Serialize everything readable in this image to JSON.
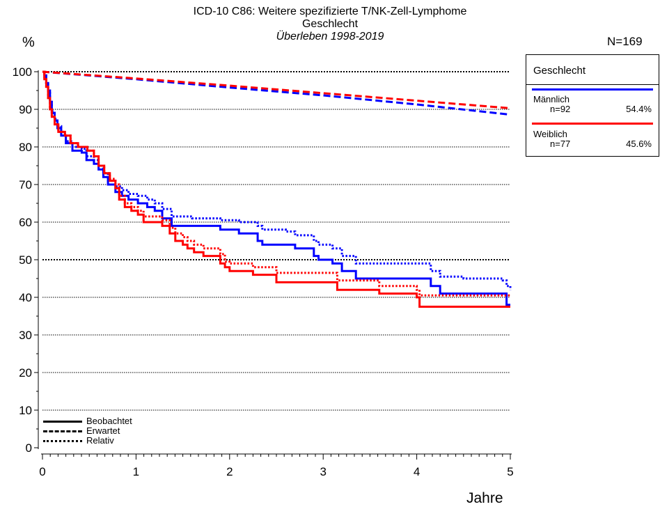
{
  "chart_data": {
    "type": "line",
    "title": "ICD-10 C86: Weitere spezifizierte T/NK-Zell-Lymphome",
    "subtitle": "Geschlecht",
    "subtitle2": "Überleben 1998-2019",
    "ylabel": "%",
    "xlabel": "Jahre",
    "n_label": "N=169",
    "xlim": [
      0,
      5
    ],
    "ylim": [
      0,
      100
    ],
    "x_ticks": [
      "0",
      "1",
      "2",
      "3",
      "4",
      "5"
    ],
    "y_ticks": [
      "0",
      "10",
      "20",
      "30",
      "40",
      "50",
      "60",
      "70",
      "80",
      "90",
      "100"
    ],
    "grid": true,
    "legend": {
      "title": "Geschlecht",
      "placement": "right",
      "entries": [
        {
          "name": "Männlich",
          "n": "n=92",
          "pct": "54.4%",
          "color": "#0000ff"
        },
        {
          "name": "Weiblich",
          "n": "n=77",
          "pct": "45.6%",
          "color": "#ff0000"
        }
      ]
    },
    "line_styles": [
      {
        "name": "Beobachtet",
        "style": "solid"
      },
      {
        "name": "Erwartet",
        "style": "dashed"
      },
      {
        "name": "Relativ",
        "style": "dotted"
      }
    ],
    "series": [
      {
        "group": "Männlich",
        "kind": "Beobachtet",
        "color": "#0000ff",
        "style": "solid",
        "step": true,
        "points": [
          [
            0,
            100
          ],
          [
            0.02,
            99
          ],
          [
            0.04,
            97
          ],
          [
            0.06,
            95
          ],
          [
            0.08,
            92
          ],
          [
            0.1,
            89
          ],
          [
            0.13,
            87
          ],
          [
            0.16,
            85
          ],
          [
            0.2,
            83
          ],
          [
            0.25,
            81
          ],
          [
            0.32,
            79
          ],
          [
            0.42,
            78.5
          ],
          [
            0.47,
            76.5
          ],
          [
            0.55,
            75.5
          ],
          [
            0.6,
            74
          ],
          [
            0.65,
            72
          ],
          [
            0.7,
            70
          ],
          [
            0.78,
            68
          ],
          [
            0.85,
            67
          ],
          [
            0.92,
            66
          ],
          [
            1.02,
            65
          ],
          [
            1.12,
            64
          ],
          [
            1.2,
            63
          ],
          [
            1.28,
            61
          ],
          [
            1.38,
            59
          ],
          [
            1.6,
            59
          ],
          [
            1.9,
            58
          ],
          [
            2.1,
            57
          ],
          [
            2.3,
            55
          ],
          [
            2.35,
            54
          ],
          [
            2.6,
            54
          ],
          [
            2.7,
            53
          ],
          [
            2.9,
            51
          ],
          [
            2.95,
            50
          ],
          [
            3.1,
            49
          ],
          [
            3.2,
            47
          ],
          [
            3.35,
            45
          ],
          [
            3.6,
            45
          ],
          [
            4.05,
            45
          ],
          [
            4.15,
            43
          ],
          [
            4.25,
            41
          ],
          [
            4.5,
            41
          ],
          [
            4.92,
            41
          ],
          [
            4.96,
            38
          ],
          [
            5,
            38
          ]
        ]
      },
      {
        "group": "Männlich",
        "kind": "Erwartet",
        "color": "#0000ff",
        "style": "dashed",
        "step": false,
        "points": [
          [
            0,
            100
          ],
          [
            1,
            98
          ],
          [
            2,
            95.8
          ],
          [
            3,
            93.7
          ],
          [
            4,
            91.3
          ],
          [
            5,
            88.6
          ]
        ]
      },
      {
        "group": "Männlich",
        "kind": "Relativ",
        "color": "#0000ff",
        "style": "dotted",
        "step": true,
        "points": [
          [
            0,
            100
          ],
          [
            0.02,
            99
          ],
          [
            0.04,
            97
          ],
          [
            0.06,
            95
          ],
          [
            0.08,
            92
          ],
          [
            0.1,
            89.5
          ],
          [
            0.13,
            87.5
          ],
          [
            0.16,
            85.5
          ],
          [
            0.2,
            83.5
          ],
          [
            0.25,
            81.5
          ],
          [
            0.32,
            80
          ],
          [
            0.42,
            79.5
          ],
          [
            0.47,
            77.5
          ],
          [
            0.55,
            76.5
          ],
          [
            0.6,
            75
          ],
          [
            0.65,
            73
          ],
          [
            0.7,
            71
          ],
          [
            0.78,
            69.5
          ],
          [
            0.85,
            68.5
          ],
          [
            0.92,
            67.5
          ],
          [
            1.02,
            67
          ],
          [
            1.12,
            66
          ],
          [
            1.2,
            65
          ],
          [
            1.28,
            63.5
          ],
          [
            1.38,
            61.5
          ],
          [
            1.6,
            61
          ],
          [
            1.9,
            60.5
          ],
          [
            2.1,
            60
          ],
          [
            2.3,
            59
          ],
          [
            2.35,
            58
          ],
          [
            2.6,
            57.5
          ],
          [
            2.7,
            56.5
          ],
          [
            2.9,
            55
          ],
          [
            2.95,
            54
          ],
          [
            3.1,
            53
          ],
          [
            3.2,
            51
          ],
          [
            3.35,
            49
          ],
          [
            3.6,
            49
          ],
          [
            4.05,
            49
          ],
          [
            4.15,
            47
          ],
          [
            4.25,
            45.5
          ],
          [
            4.5,
            45
          ],
          [
            4.92,
            44.5
          ],
          [
            4.96,
            43
          ],
          [
            5,
            42
          ]
        ]
      },
      {
        "group": "Weiblich",
        "kind": "Beobachtet",
        "color": "#ff0000",
        "style": "solid",
        "step": true,
        "points": [
          [
            0,
            100
          ],
          [
            0.02,
            98
          ],
          [
            0.04,
            96
          ],
          [
            0.06,
            93
          ],
          [
            0.08,
            90
          ],
          [
            0.1,
            88
          ],
          [
            0.13,
            86
          ],
          [
            0.17,
            84
          ],
          [
            0.24,
            83
          ],
          [
            0.3,
            81
          ],
          [
            0.38,
            80
          ],
          [
            0.48,
            79
          ],
          [
            0.55,
            77.5
          ],
          [
            0.6,
            75
          ],
          [
            0.66,
            73
          ],
          [
            0.72,
            71
          ],
          [
            0.78,
            69
          ],
          [
            0.82,
            66
          ],
          [
            0.88,
            64
          ],
          [
            0.95,
            63
          ],
          [
            1.02,
            62
          ],
          [
            1.08,
            60
          ],
          [
            1.28,
            59
          ],
          [
            1.36,
            57
          ],
          [
            1.42,
            55
          ],
          [
            1.5,
            54
          ],
          [
            1.55,
            53
          ],
          [
            1.62,
            52
          ],
          [
            1.72,
            51
          ],
          [
            1.9,
            49
          ],
          [
            1.95,
            48
          ],
          [
            2.0,
            47
          ],
          [
            2.25,
            46
          ],
          [
            2.5,
            44
          ],
          [
            3.15,
            42
          ],
          [
            3.6,
            41
          ],
          [
            4.0,
            40
          ],
          [
            4.03,
            37.5
          ],
          [
            5,
            37.5
          ]
        ]
      },
      {
        "group": "Weiblich",
        "kind": "Erwartet",
        "color": "#ff0000",
        "style": "dashed",
        "step": false,
        "points": [
          [
            0,
            100
          ],
          [
            1,
            98.2
          ],
          [
            2,
            96.3
          ],
          [
            3,
            94.3
          ],
          [
            4,
            92.3
          ],
          [
            5,
            90.3
          ]
        ]
      },
      {
        "group": "Weiblich",
        "kind": "Relativ",
        "color": "#ff0000",
        "style": "dotted",
        "step": true,
        "points": [
          [
            0,
            100
          ],
          [
            0.02,
            98
          ],
          [
            0.04,
            96
          ],
          [
            0.06,
            93
          ],
          [
            0.08,
            90
          ],
          [
            0.1,
            88
          ],
          [
            0.13,
            86
          ],
          [
            0.17,
            84
          ],
          [
            0.24,
            83
          ],
          [
            0.3,
            81
          ],
          [
            0.38,
            80
          ],
          [
            0.48,
            79
          ],
          [
            0.55,
            77.5
          ],
          [
            0.6,
            75
          ],
          [
            0.66,
            73
          ],
          [
            0.72,
            71.5
          ],
          [
            0.78,
            70
          ],
          [
            0.82,
            67
          ],
          [
            0.88,
            65
          ],
          [
            0.95,
            64
          ],
          [
            1.02,
            63
          ],
          [
            1.08,
            61.5
          ],
          [
            1.28,
            60.5
          ],
          [
            1.36,
            58.5
          ],
          [
            1.42,
            57
          ],
          [
            1.5,
            56
          ],
          [
            1.55,
            55
          ],
          [
            1.62,
            54
          ],
          [
            1.72,
            53
          ],
          [
            1.9,
            51.5
          ],
          [
            1.95,
            49.5
          ],
          [
            2.0,
            49
          ],
          [
            2.25,
            48
          ],
          [
            2.5,
            46.5
          ],
          [
            3.15,
            44.5
          ],
          [
            3.6,
            43
          ],
          [
            4.0,
            42
          ],
          [
            4.03,
            40.5
          ],
          [
            5,
            40.5
          ]
        ]
      }
    ]
  }
}
